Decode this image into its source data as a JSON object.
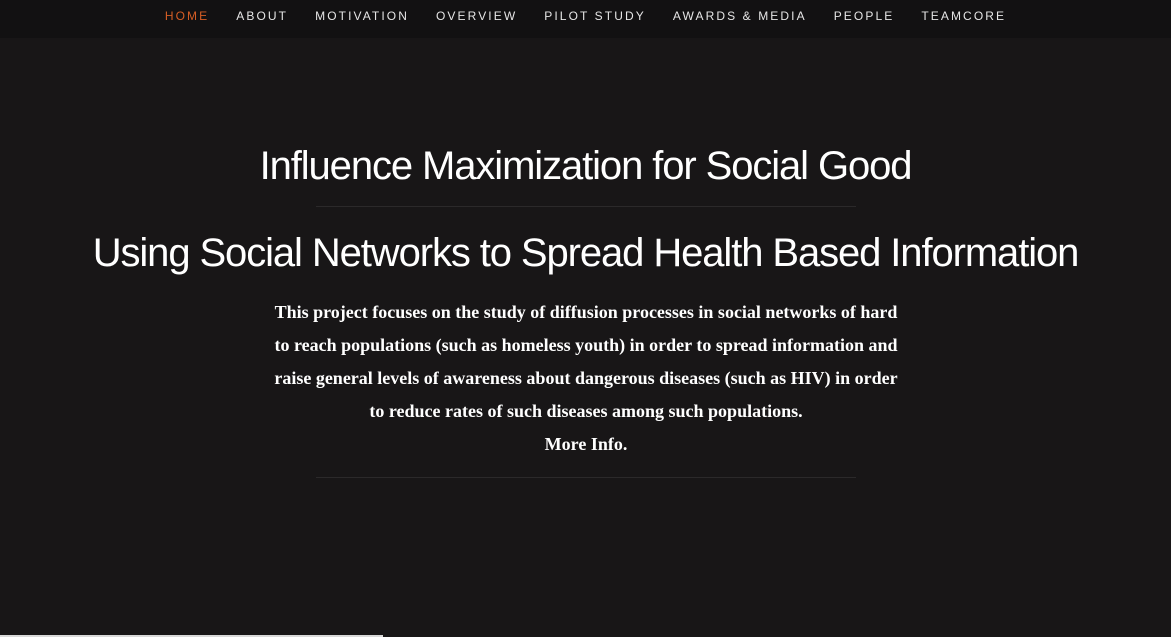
{
  "nav": {
    "items": [
      {
        "label": "HOME",
        "active": true
      },
      {
        "label": "ABOUT",
        "active": false
      },
      {
        "label": "MOTIVATION",
        "active": false
      },
      {
        "label": "OVERVIEW",
        "active": false
      },
      {
        "label": "PILOT STUDY",
        "active": false
      },
      {
        "label": "AWARDS & MEDIA",
        "active": false
      },
      {
        "label": "PEOPLE",
        "active": false
      },
      {
        "label": "TEAMCORE",
        "active": false
      }
    ]
  },
  "hero": {
    "title": "Influence Maximization for Social Good",
    "subtitle": "Using Social Networks to Spread Health Based Information",
    "description": "This project focuses on the study of diffusion processes in social networks of hard to reach populations (such as homeless youth) in order to spread information and raise general levels of awareness about dangerous diseases (such as HIV) in order to reduce rates of such diseases among such populations.",
    "more_info": "More Info."
  },
  "colors": {
    "background": "#181617",
    "navbar": "#121112",
    "accent": "#d55d24",
    "text": "#ffffff"
  }
}
